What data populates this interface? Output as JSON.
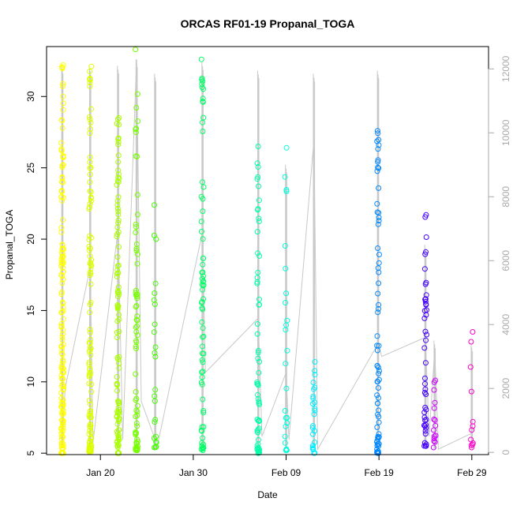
{
  "chart_data": {
    "type": "scatter",
    "title": "ORCAS RF01-19 Propanal_TOGA",
    "xlabel": "Date",
    "ylabel": "Propanal_TOGA",
    "x_ticks": [
      "Jan 20",
      "Jan 30",
      "Feb 09",
      "Feb 19",
      "Feb 29"
    ],
    "x_tick_days": [
      20,
      30,
      40,
      50,
      60
    ],
    "xlim_days": [
      14.2,
      61.8
    ],
    "ylim": [
      4.9,
      33.5
    ],
    "y_ticks": [
      5,
      10,
      15,
      20,
      25,
      30
    ],
    "y2_ticks": [
      0,
      2000,
      4000,
      6000,
      8000,
      10000,
      12000
    ],
    "y2lim": [
      -70,
      12700
    ],
    "colors": {
      "altitude_line": "#c8c8c8",
      "right_axis": "#aaaaaa",
      "flights": [
        "#ffff00",
        "#ddff00",
        "#aaff00",
        "#77ff00",
        "#44ff00",
        "#00ff66",
        "#00ffaa",
        "#00ffdd",
        "#00eeff",
        "#0088ff",
        "#4400ff",
        "#cc00ff",
        "#ff00cc"
      ]
    },
    "flights": [
      {
        "day": 15.9,
        "ymin": 5.0,
        "ymax": 32.2,
        "n": 150,
        "alt_max": 12100
      },
      {
        "day": 18.9,
        "ymin": 5.1,
        "ymax": 32.1,
        "n": 110,
        "alt_max": 12050
      },
      {
        "day": 21.9,
        "ymin": 5.0,
        "ymax": 28.5,
        "n": 100,
        "alt_max": 12100
      },
      {
        "day": 23.9,
        "ymin": 5.2,
        "ymax": 33.3,
        "n": 70,
        "alt_max": 12300
      },
      {
        "day": 25.9,
        "ymin": 5.4,
        "ymax": 22.4,
        "n": 25,
        "alt_max": 11850
      },
      {
        "day": 31.0,
        "ymin": 5.2,
        "ymax": 32.6,
        "n": 70,
        "alt_max": 12200
      },
      {
        "day": 37.0,
        "ymin": 5.0,
        "ymax": 26.5,
        "n": 60,
        "alt_max": 11950
      },
      {
        "day": 40.0,
        "ymin": 5.2,
        "ymax": 26.4,
        "n": 25,
        "alt_max": 9000
      },
      {
        "day": 43.0,
        "ymin": 5.0,
        "ymax": 11.4,
        "n": 25,
        "alt_max": 11850
      },
      {
        "day": 49.9,
        "ymin": 5.0,
        "ymax": 27.6,
        "n": 70,
        "alt_max": 11950
      },
      {
        "day": 55.0,
        "ymin": 5.5,
        "ymax": 21.7,
        "n": 45,
        "alt_max": 6500
      },
      {
        "day": 56.0,
        "ymin": 5.4,
        "ymax": 10.1,
        "n": 15,
        "alt_max": 3500
      },
      {
        "day": 60.0,
        "ymin": 5.4,
        "ymax": 13.5,
        "n": 12,
        "alt_max": 3400
      }
    ],
    "altitude_path_days": [
      15.9,
      16.2,
      18.9,
      19.2,
      21.9,
      22.4,
      23.9,
      24.4,
      25.9,
      26.2,
      31.0,
      31.3,
      37.0,
      37.4,
      40.0,
      40.3,
      43.0,
      43.4,
      49.9,
      50.3,
      55.0,
      55.4,
      56.0,
      56.4,
      60.0
    ],
    "altitude_path_values": [
      300,
      2000,
      5800,
      300,
      7000,
      400,
      12300,
      1600,
      400,
      300,
      6900,
      2500,
      4200,
      500,
      2500,
      400,
      9800,
      100,
      3400,
      3000,
      3600,
      500,
      3200,
      100,
      600
    ]
  }
}
